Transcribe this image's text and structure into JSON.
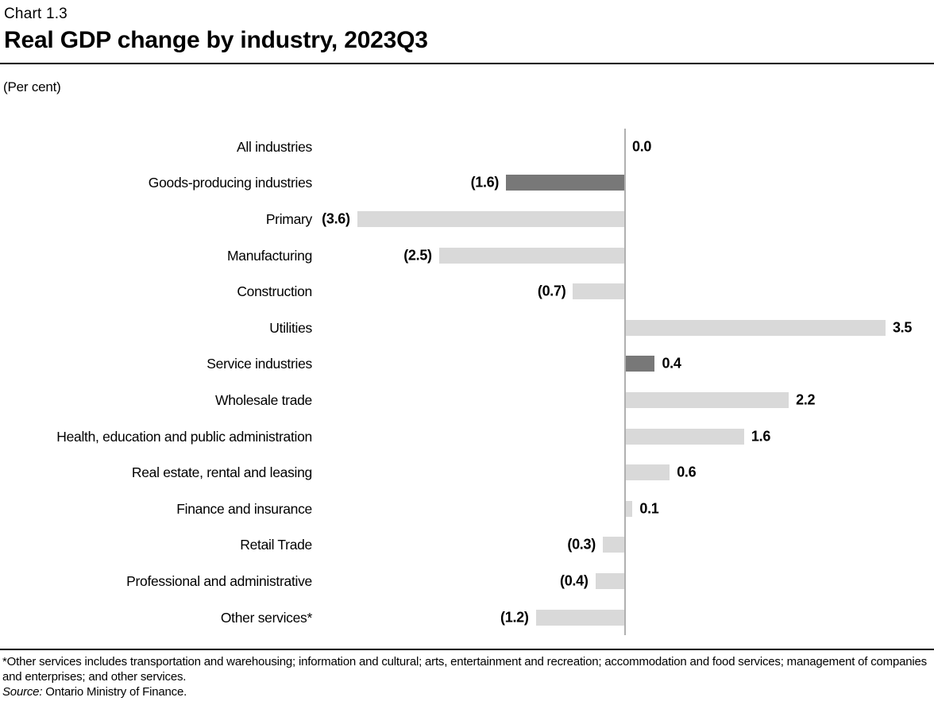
{
  "header": {
    "chart_number": "Chart 1.3",
    "title": "Real GDP change by industry, 2023Q3",
    "units": "(Per cent)"
  },
  "chart_data": {
    "type": "bar",
    "orientation": "horizontal",
    "title": "Real GDP change by industry, 2023Q3",
    "units": "Per cent",
    "xlim": [
      -4.2,
      4.15
    ],
    "grid": false,
    "legend": false,
    "axis_color": "#b0b0b0",
    "bar_colors": {
      "light": "#d9d9d9",
      "dark": "#787878"
    },
    "categories": [
      "All industries",
      "Goods-producing industries",
      "Primary",
      "Manufacturing",
      "Construction",
      "Utilities",
      "Service industries",
      "Wholesale trade",
      "Health, education and public administration",
      "Real estate, rental and leasing",
      "Finance and insurance",
      "Retail Trade",
      "Professional and administrative",
      "Other services*"
    ],
    "values": [
      0.0,
      -1.6,
      -3.6,
      -2.5,
      -0.7,
      3.5,
      0.4,
      2.2,
      1.6,
      0.6,
      0.1,
      -0.3,
      -0.4,
      -1.2
    ],
    "value_labels": [
      "0.0",
      "(1.6)",
      "(3.6)",
      "(2.5)",
      "(0.7)",
      "3.5",
      "0.4",
      "2.2",
      "1.6",
      "0.6",
      "0.1",
      "(0.3)",
      "(0.4)",
      "(1.2)"
    ],
    "emphasis": [
      false,
      true,
      false,
      false,
      false,
      false,
      true,
      false,
      false,
      false,
      false,
      false,
      false,
      false
    ]
  },
  "footer": {
    "footnote": "*Other services includes transportation and warehousing; information and cultural; arts, entertainment and recreation; accommodation and food services; management of companies and enterprises; and other services.",
    "source_label": "Source:",
    "source_text": " Ontario Ministry of Finance."
  }
}
